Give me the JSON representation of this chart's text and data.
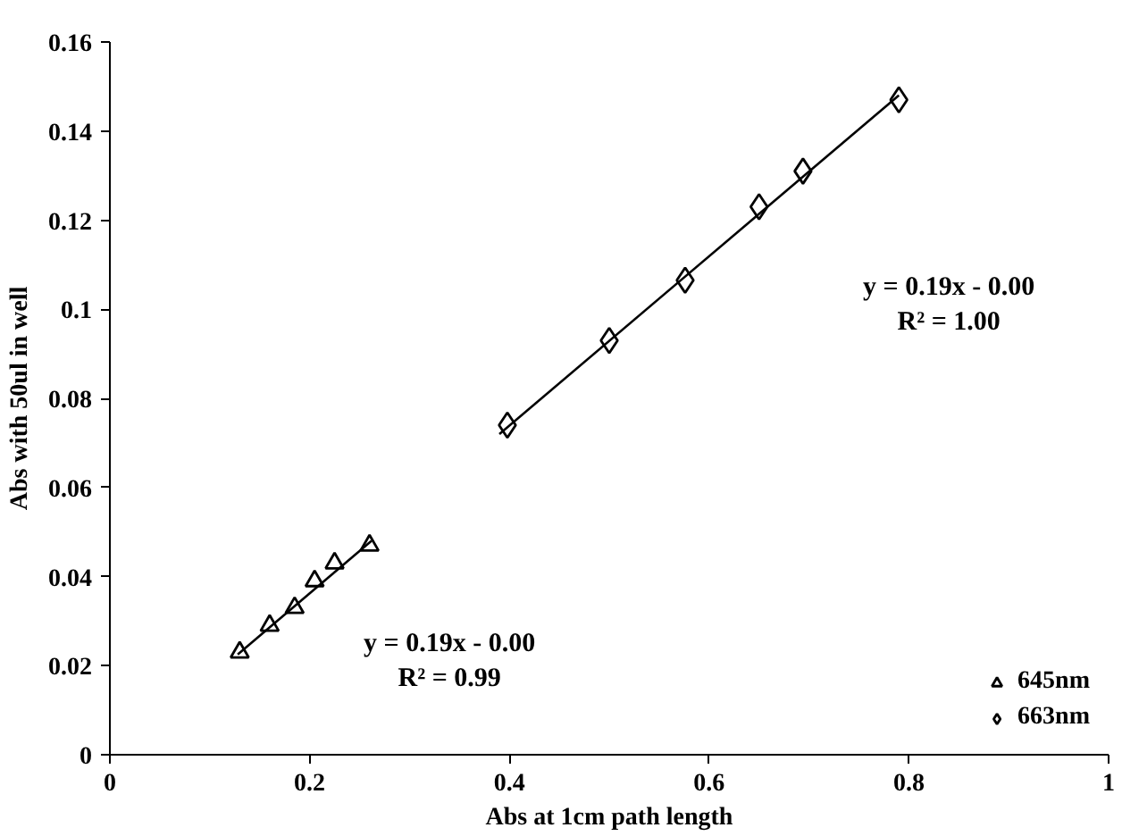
{
  "chart_data": {
    "type": "scatter",
    "xlabel": "Abs at 1cm path length",
    "ylabel": "Abs with 50ul in well",
    "xlim": [
      0,
      1
    ],
    "ylim": [
      0,
      0.16
    ],
    "xticks": [
      0,
      0.2,
      0.4,
      0.6,
      0.8,
      1
    ],
    "yticks": [
      0,
      0.02,
      0.04,
      0.06,
      0.08,
      0.1,
      0.12,
      0.14,
      0.16
    ],
    "grid": false,
    "legend": "bottom right",
    "series": [
      {
        "name": "645nm",
        "marker": "triangle",
        "color": "#000000",
        "x": [
          0.13,
          0.16,
          0.185,
          0.205,
          0.225,
          0.26
        ],
        "values": [
          0.023,
          0.029,
          0.033,
          0.039,
          0.043,
          0.047
        ]
      },
      {
        "name": "663nm",
        "marker": "diamond",
        "color": "#000000",
        "x": [
          0.398,
          0.5,
          0.576,
          0.65,
          0.694,
          0.79
        ],
        "values": [
          0.074,
          0.093,
          0.1065,
          0.123,
          0.131,
          0.147
        ]
      },
      {
        "type": "line",
        "line_style": "solid",
        "color": "#000000",
        "x": [
          0.128,
          0.262
        ],
        "values": [
          0.0225,
          0.048
        ]
      },
      {
        "type": "line",
        "line_style": "solid",
        "color": "#000000",
        "x": [
          0.39,
          0.79
        ],
        "values": [
          0.072,
          0.148
        ]
      }
    ],
    "annotations": [
      "y = 0.19x - 0.00\nR² = 1.00",
      "y = 0.19x - 0.00\nR² = 0.99"
    ]
  }
}
